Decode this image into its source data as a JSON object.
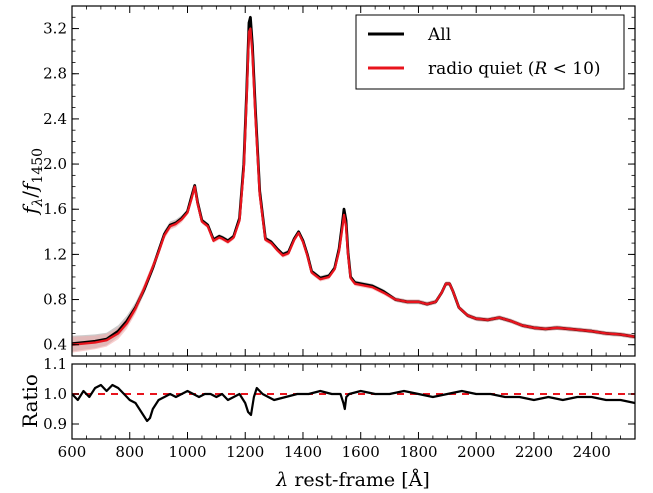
{
  "chart_data": [
    {
      "type": "line",
      "xlim": [
        600,
        2550
      ],
      "ylim": [
        0.3,
        3.4
      ],
      "ylabel": "f_λ/f_1450",
      "yticks": [
        0.4,
        0.8,
        1.2,
        1.6,
        2.0,
        2.4,
        2.8,
        3.2
      ],
      "ytick_labels": [
        "0.4",
        "0.8",
        "1.2",
        "1.6",
        "2.0",
        "2.4",
        "2.8",
        "3.2"
      ],
      "legend": {
        "placement": "top-right"
      },
      "series": [
        {
          "name": "All",
          "color": "#000000",
          "x": [
            600,
            640,
            680,
            720,
            760,
            790,
            820,
            850,
            880,
            900,
            920,
            940,
            960,
            980,
            1000,
            1015,
            1025,
            1035,
            1050,
            1070,
            1090,
            1110,
            1120,
            1140,
            1160,
            1180,
            1195,
            1205,
            1213,
            1218,
            1225,
            1235,
            1250,
            1270,
            1290,
            1310,
            1330,
            1350,
            1370,
            1385,
            1400,
            1415,
            1430,
            1460,
            1490,
            1510,
            1525,
            1535,
            1542,
            1549,
            1556,
            1565,
            1580,
            1600,
            1640,
            1680,
            1720,
            1760,
            1800,
            1830,
            1860,
            1880,
            1895,
            1908,
            1920,
            1940,
            1970,
            2000,
            2040,
            2080,
            2120,
            2160,
            2200,
            2240,
            2280,
            2320,
            2360,
            2400,
            2450,
            2500,
            2550
          ],
          "y": [
            0.41,
            0.42,
            0.43,
            0.45,
            0.52,
            0.61,
            0.73,
            0.89,
            1.08,
            1.23,
            1.38,
            1.46,
            1.48,
            1.52,
            1.58,
            1.72,
            1.81,
            1.66,
            1.5,
            1.46,
            1.33,
            1.36,
            1.35,
            1.32,
            1.36,
            1.52,
            2.0,
            2.65,
            3.25,
            3.3,
            3.05,
            2.5,
            1.76,
            1.34,
            1.31,
            1.25,
            1.2,
            1.22,
            1.34,
            1.4,
            1.32,
            1.2,
            1.05,
            0.99,
            1.01,
            1.08,
            1.25,
            1.45,
            1.6,
            1.5,
            1.22,
            1.0,
            0.95,
            0.94,
            0.92,
            0.87,
            0.8,
            0.78,
            0.78,
            0.76,
            0.78,
            0.86,
            0.94,
            0.94,
            0.87,
            0.73,
            0.66,
            0.63,
            0.62,
            0.64,
            0.61,
            0.57,
            0.55,
            0.54,
            0.55,
            0.54,
            0.53,
            0.52,
            0.5,
            0.49,
            0.47
          ]
        },
        {
          "name": "radio quiet (R < 10)",
          "color": "#e8141d",
          "x": [
            600,
            640,
            680,
            720,
            760,
            790,
            820,
            850,
            880,
            900,
            920,
            940,
            960,
            980,
            1000,
            1015,
            1025,
            1035,
            1050,
            1070,
            1090,
            1110,
            1120,
            1140,
            1160,
            1180,
            1195,
            1205,
            1213,
            1218,
            1225,
            1235,
            1250,
            1270,
            1290,
            1310,
            1330,
            1350,
            1370,
            1385,
            1400,
            1415,
            1430,
            1460,
            1490,
            1510,
            1525,
            1535,
            1542,
            1549,
            1556,
            1565,
            1580,
            1600,
            1640,
            1680,
            1720,
            1760,
            1800,
            1830,
            1860,
            1880,
            1895,
            1908,
            1920,
            1940,
            1970,
            2000,
            2040,
            2080,
            2120,
            2160,
            2200,
            2240,
            2280,
            2320,
            2360,
            2400,
            2450,
            2500,
            2550
          ],
          "y": [
            0.4,
            0.41,
            0.42,
            0.44,
            0.5,
            0.59,
            0.72,
            0.9,
            1.09,
            1.22,
            1.37,
            1.45,
            1.47,
            1.51,
            1.57,
            1.7,
            1.8,
            1.65,
            1.49,
            1.45,
            1.32,
            1.35,
            1.34,
            1.31,
            1.35,
            1.5,
            1.96,
            2.6,
            3.17,
            3.2,
            2.98,
            2.44,
            1.73,
            1.33,
            1.3,
            1.24,
            1.19,
            1.21,
            1.33,
            1.39,
            1.31,
            1.19,
            1.04,
            0.98,
            1.0,
            1.07,
            1.23,
            1.41,
            1.55,
            1.45,
            1.2,
            0.99,
            0.94,
            0.93,
            0.91,
            0.86,
            0.8,
            0.78,
            0.78,
            0.76,
            0.78,
            0.86,
            0.94,
            0.94,
            0.87,
            0.73,
            0.66,
            0.63,
            0.62,
            0.64,
            0.61,
            0.57,
            0.55,
            0.54,
            0.55,
            0.54,
            0.53,
            0.52,
            0.5,
            0.49,
            0.47
          ]
        }
      ]
    },
    {
      "type": "line",
      "xlim": [
        600,
        2550
      ],
      "ylim": [
        0.85,
        1.1
      ],
      "ylabel": "Ratio",
      "yticks": [
        0.9,
        1.0,
        1.1
      ],
      "ytick_labels": [
        "0.9",
        "1.0",
        "1.1"
      ],
      "xlabel": "λ rest-frame [Å]",
      "xticks": [
        600,
        800,
        1000,
        1200,
        1400,
        1600,
        1800,
        2000,
        2200,
        2400
      ],
      "xtick_labels": [
        "600",
        "800",
        "1000",
        "1200",
        "1400",
        "1600",
        "1800",
        "2000",
        "2200",
        "2400"
      ],
      "reference_line": {
        "y": 1.0,
        "color": "#e8141d",
        "style": "dashed"
      },
      "series": [
        {
          "name": "",
          "color": "#000000",
          "x": [
            600,
            620,
            640,
            660,
            680,
            700,
            720,
            740,
            760,
            780,
            800,
            820,
            840,
            860,
            870,
            880,
            900,
            920,
            940,
            960,
            980,
            1000,
            1020,
            1040,
            1060,
            1080,
            1100,
            1120,
            1140,
            1160,
            1180,
            1200,
            1210,
            1220,
            1230,
            1240,
            1260,
            1280,
            1300,
            1340,
            1380,
            1420,
            1460,
            1500,
            1530,
            1540,
            1545,
            1550,
            1560,
            1600,
            1650,
            1700,
            1750,
            1800,
            1850,
            1900,
            1950,
            2000,
            2050,
            2100,
            2150,
            2200,
            2250,
            2300,
            2350,
            2400,
            2450,
            2500,
            2550
          ],
          "y": [
            1.0,
            0.98,
            1.01,
            0.99,
            1.02,
            1.03,
            1.01,
            1.03,
            1.02,
            1.0,
            0.98,
            0.97,
            0.94,
            0.91,
            0.92,
            0.95,
            0.98,
            0.99,
            1.0,
            0.99,
            1.0,
            1.01,
            1.0,
            0.99,
            1.0,
            1.0,
            0.99,
            1.0,
            0.98,
            0.99,
            1.0,
            0.97,
            0.94,
            0.93,
            0.99,
            1.02,
            1.0,
            0.99,
            0.98,
            0.99,
            1.0,
            1.0,
            1.01,
            1.0,
            1.0,
            0.97,
            0.95,
            0.99,
            1.0,
            1.01,
            1.0,
            1.0,
            1.01,
            1.0,
            0.99,
            1.0,
            1.01,
            1.0,
            1.0,
            0.99,
            0.99,
            0.98,
            0.99,
            0.98,
            0.99,
            0.99,
            0.98,
            0.98,
            0.97
          ]
        }
      ]
    }
  ]
}
